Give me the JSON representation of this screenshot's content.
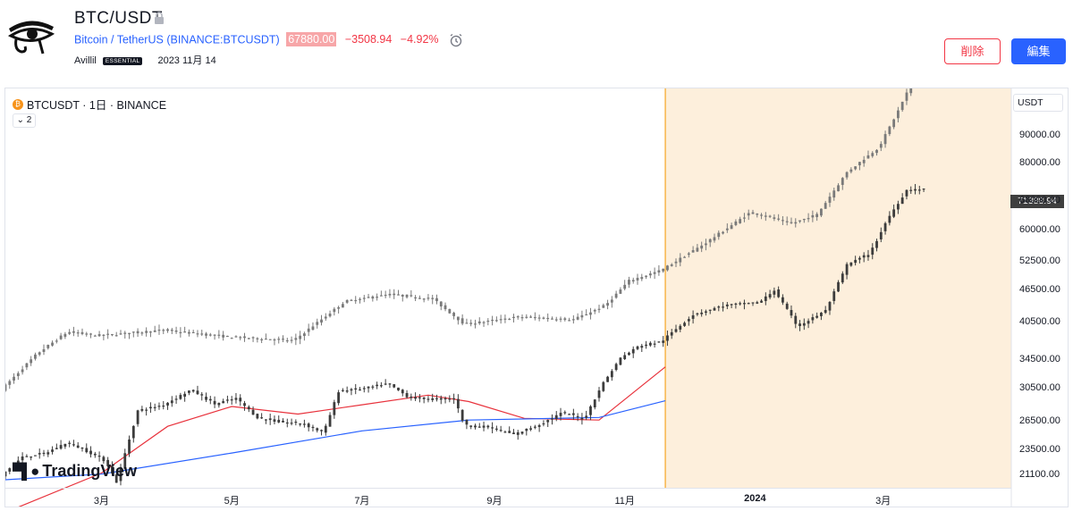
{
  "header": {
    "title": "BTC/USDT",
    "symbol_full": "Bitcoin / TetherUS",
    "exchange_symbol": "(BINANCE:BTCUSDT)",
    "price": "67880.00",
    "change": "−3508.94",
    "change_pct": "−4.92%",
    "author": "Avillil",
    "badge": "ESSENTIAL",
    "date": "2023 11月 14",
    "delete_label": "削除",
    "edit_label": "編集"
  },
  "chart": {
    "legend": "BTCUSDT · 1日 · BINANCE",
    "collapse_label": "2",
    "currency": "USDT",
    "last_price": "71388.94",
    "brand": "TradingView",
    "y_labels": [
      "90000.00",
      "80000.00",
      "68000.00",
      "60000.00",
      "52500.00",
      "46500.00",
      "40500.00",
      "34500.00",
      "30500.00",
      "26500.00",
      "23500.00",
      "21100.00"
    ],
    "x_labels": [
      "3月",
      "5月",
      "7月",
      "9月",
      "11月",
      "2024",
      "3月"
    ],
    "colors": {
      "projection_bg": "#fdefdc",
      "divider": "#f5a623",
      "ma_fast": "#e8323c",
      "ma_slow": "#2962ff",
      "candles_actual": "#3c3c3c",
      "candles_fractal": "#7a7a7a",
      "last_price_bg": "#3f3f3f"
    }
  },
  "chart_data": {
    "type": "candlestick",
    "scale": "log",
    "ylim": [
      20000,
      110000
    ],
    "x_range": [
      "2023-01-15",
      "2024-04-30"
    ],
    "x_ticks": [
      "3月",
      "5月",
      "7月",
      "9月",
      "11月",
      "2024",
      "3月"
    ],
    "y_ticks": [
      90000,
      80000,
      68000,
      60000,
      52500,
      46500,
      40500,
      34500,
      30500,
      26500,
      23500,
      21100
    ],
    "series": [
      {
        "name": "BTCUSDT",
        "kind": "actual",
        "points": [
          [
            "2023-01-15",
            21100
          ],
          [
            "2023-01-25",
            22800
          ],
          [
            "2023-02-05",
            23200
          ],
          [
            "2023-02-15",
            24300
          ],
          [
            "2023-02-25",
            23300
          ],
          [
            "2023-03-05",
            22400
          ],
          [
            "2023-03-10",
            20500
          ],
          [
            "2023-03-20",
            27800
          ],
          [
            "2023-04-01",
            28500
          ],
          [
            "2023-04-14",
            30400
          ],
          [
            "2023-04-25",
            28600
          ],
          [
            "2023-05-05",
            29300
          ],
          [
            "2023-05-15",
            27000
          ],
          [
            "2023-05-25",
            26500
          ],
          [
            "2023-06-05",
            26300
          ],
          [
            "2023-06-15",
            25300
          ],
          [
            "2023-06-22",
            30200
          ],
          [
            "2023-07-05",
            30600
          ],
          [
            "2023-07-15",
            31200
          ],
          [
            "2023-07-25",
            29400
          ],
          [
            "2023-08-05",
            29200
          ],
          [
            "2023-08-15",
            29300
          ],
          [
            "2023-08-20",
            26100
          ],
          [
            "2023-09-01",
            25900
          ],
          [
            "2023-09-12",
            25100
          ],
          [
            "2023-09-25",
            26300
          ],
          [
            "2023-10-05",
            27600
          ],
          [
            "2023-10-15",
            26800
          ],
          [
            "2023-10-23",
            30900
          ],
          [
            "2023-11-01",
            34800
          ],
          [
            "2023-11-10",
            36700
          ],
          [
            "2023-11-20",
            37300
          ],
          [
            "2023-12-05",
            41900
          ],
          [
            "2023-12-20",
            43600
          ],
          [
            "2024-01-05",
            44100
          ],
          [
            "2024-01-12",
            46500
          ],
          [
            "2024-01-23",
            39800
          ],
          [
            "2024-02-05",
            42600
          ],
          [
            "2024-02-15",
            51800
          ],
          [
            "2024-02-26",
            54500
          ],
          [
            "2024-03-05",
            63000
          ],
          [
            "2024-03-14",
            71300
          ],
          [
            "2024-03-20",
            71388.94
          ]
        ]
      },
      {
        "name": "BTCUSDT fractal (overlay)",
        "kind": "fractal",
        "points": [
          [
            "2023-01-15",
            30400
          ],
          [
            "2023-02-01",
            35500
          ],
          [
            "2023-02-15",
            38900
          ],
          [
            "2023-03-01",
            38300
          ],
          [
            "2023-04-01",
            39200
          ],
          [
            "2023-05-01",
            38100
          ],
          [
            "2023-06-01",
            37500
          ],
          [
            "2023-06-25",
            44300
          ],
          [
            "2023-07-15",
            45700
          ],
          [
            "2023-08-05",
            44800
          ],
          [
            "2023-08-20",
            40200
          ],
          [
            "2023-09-15",
            41500
          ],
          [
            "2023-10-10",
            41000
          ],
          [
            "2023-10-25",
            43600
          ],
          [
            "2023-11-05",
            48400
          ],
          [
            "2023-11-20",
            50600
          ],
          [
            "2023-12-10",
            56600
          ],
          [
            "2024-01-01",
            64900
          ],
          [
            "2024-01-20",
            61800
          ],
          [
            "2024-02-01",
            64200
          ],
          [
            "2024-02-15",
            76900
          ],
          [
            "2024-03-01",
            85600
          ],
          [
            "2024-03-10",
            100000
          ],
          [
            "2024-03-15",
            110000
          ]
        ]
      },
      {
        "name": "MA fast",
        "kind": "line",
        "points": [
          [
            "2023-01-15",
            18000
          ],
          [
            "2023-03-01",
            21300
          ],
          [
            "2023-04-01",
            26000
          ],
          [
            "2023-05-01",
            28300
          ],
          [
            "2023-06-01",
            27400
          ],
          [
            "2023-07-01",
            28500
          ],
          [
            "2023-08-01",
            29700
          ],
          [
            "2023-08-20",
            28900
          ],
          [
            "2023-09-15",
            26900
          ],
          [
            "2023-10-20",
            26700
          ],
          [
            "2023-11-20",
            33500
          ]
        ]
      },
      {
        "name": "MA slow",
        "kind": "line",
        "points": [
          [
            "2023-01-15",
            20700
          ],
          [
            "2023-03-01",
            21200
          ],
          [
            "2023-05-01",
            23200
          ],
          [
            "2023-07-01",
            25500
          ],
          [
            "2023-08-20",
            26700
          ],
          [
            "2023-10-20",
            27000
          ],
          [
            "2023-11-20",
            29000
          ]
        ]
      }
    ],
    "annotations": [
      {
        "type": "vertical_line",
        "x": "2023-11-20"
      },
      {
        "type": "shaded_region",
        "x_from": "2023-11-20",
        "x_to": "2024-04-30"
      }
    ]
  }
}
